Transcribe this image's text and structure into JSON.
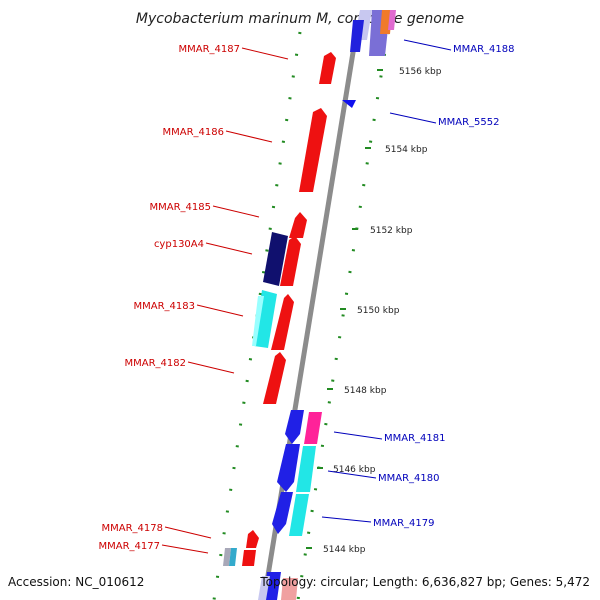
{
  "title": "Mycobacterium marinum M, complete genome",
  "footer": {
    "accession": "Accession: NC_010612",
    "topology": "Topology: circular; Length: 6,636,827 bp; Genes: 5,472"
  },
  "colors": {
    "left_label": "#cc0000",
    "right_label": "#0000bb",
    "backbone": "#8c8c8c",
    "dots": "#228b22",
    "forward_red": "#ee1111",
    "reverse_blue": "#1e1ee6",
    "navy": "#10106e",
    "cyan": "#22e6e6",
    "magenta": "#ff2299"
  },
  "scale_ticks": [
    "5156 kbp",
    "5154 kbp",
    "5152 kbp",
    "5150 kbp",
    "5148 kbp",
    "5146 kbp",
    "5144 kbp"
  ],
  "genes_left": [
    {
      "label": "MMAR_4187"
    },
    {
      "label": "MMAR_4186"
    },
    {
      "label": "MMAR_4185"
    },
    {
      "label": "cyp130A4"
    },
    {
      "label": "MMAR_4183"
    },
    {
      "label": "MMAR_4182"
    },
    {
      "label": "MMAR_4178"
    },
    {
      "label": "MMAR_4177"
    }
  ],
  "genes_right": [
    {
      "label": "MMAR_4188"
    },
    {
      "label": "MMAR_5552"
    },
    {
      "label": "MMAR_4181"
    },
    {
      "label": "MMAR_4180"
    },
    {
      "label": "MMAR_4179"
    }
  ]
}
